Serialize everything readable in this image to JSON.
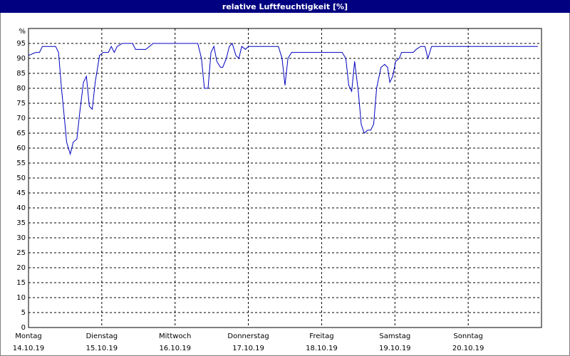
{
  "chart_data": {
    "type": "line",
    "title": "relative Luftfeuchtigkeit [%]",
    "y_unit": "%",
    "xlim": [
      0,
      7
    ],
    "ylim": [
      0,
      100
    ],
    "yticks": [
      0,
      5,
      10,
      15,
      20,
      25,
      30,
      35,
      40,
      45,
      50,
      55,
      60,
      65,
      70,
      75,
      80,
      85,
      90,
      95
    ],
    "xticks": [
      {
        "value": 0,
        "label": "14.10.19"
      },
      {
        "value": 1,
        "label": "15.10.19"
      },
      {
        "value": 2,
        "label": "16.10.19"
      },
      {
        "value": 3,
        "label": "17.10.19"
      },
      {
        "value": 4,
        "label": "18.10.19"
      },
      {
        "value": 5,
        "label": "19.10.19"
      },
      {
        "value": 6,
        "label": "20.10.19"
      }
    ],
    "xtick_weekdays": [
      "Montag",
      "Dienstag",
      "Mittwoch",
      "Donnerstag",
      "Freitag",
      "Samstag",
      "Sonntag"
    ],
    "grid": true,
    "x": [
      0,
      0.1,
      0.15,
      0.19,
      0.29,
      0.37,
      0.41,
      0.45,
      0.49,
      0.52,
      0.57,
      0.61,
      0.66,
      0.7,
      0.75,
      0.79,
      0.83,
      0.87,
      0.91,
      0.97,
      1.02,
      1.09,
      1.13,
      1.17,
      1.21,
      1.28,
      1.42,
      1.46,
      1.6,
      1.65,
      1.7,
      1.85,
      2.31,
      2.36,
      2.4,
      2.45,
      2.49,
      2.53,
      2.57,
      2.62,
      2.65,
      2.7,
      2.74,
      2.78,
      2.83,
      2.87,
      2.91,
      2.96,
      3.0,
      3.07,
      3.41,
      3.46,
      3.5,
      3.54,
      3.59,
      3.93,
      4.28,
      4.33,
      4.37,
      4.41,
      4.45,
      4.5,
      4.54,
      4.58,
      4.63,
      4.67,
      4.71,
      4.75,
      4.81,
      4.86,
      4.9,
      4.93,
      4.97,
      5.01,
      5.06,
      5.09,
      5.2,
      5.25,
      5.29,
      5.35,
      5.41,
      5.45,
      5.5,
      5.56,
      6.95
    ],
    "series": [
      {
        "color": "#0000c0",
        "values": [
          91,
          92,
          92,
          94,
          94,
          94,
          92,
          80,
          70,
          62,
          58,
          62,
          63,
          72,
          82,
          84,
          74,
          73,
          82,
          91,
          92,
          92,
          94,
          92,
          94,
          95,
          95,
          93,
          93,
          94,
          95,
          95,
          95,
          90,
          80,
          80,
          92,
          94,
          89,
          87,
          87,
          90,
          94,
          95,
          91,
          90,
          94,
          93,
          94,
          94,
          94,
          90,
          81,
          90,
          92,
          92,
          92,
          90,
          81,
          79,
          89,
          79,
          68,
          65,
          66,
          66,
          68,
          80,
          87,
          88,
          87,
          82,
          84,
          89,
          90,
          92,
          92,
          92,
          93,
          94,
          94,
          90,
          94,
          94,
          94
        ]
      }
    ]
  }
}
